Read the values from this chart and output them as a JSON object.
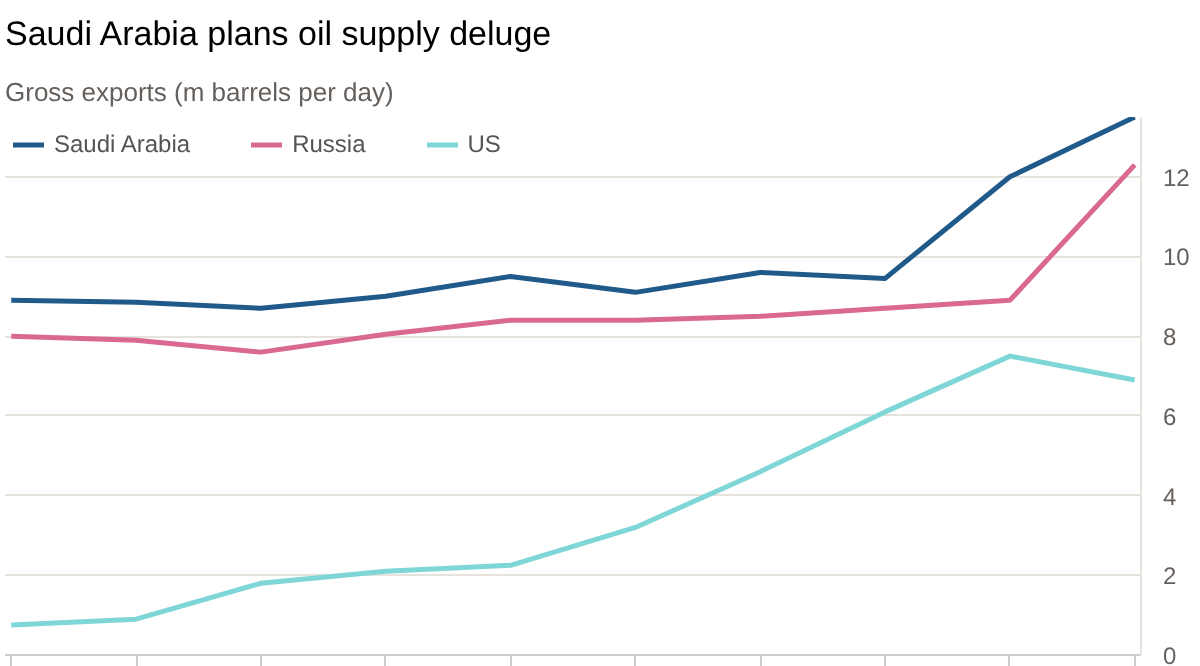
{
  "chart_data": {
    "type": "line",
    "title": "Saudi Arabia plans oil supply deluge",
    "subtitle": "Gross exports (m barrels per day)",
    "categories": [
      null,
      null,
      null,
      null,
      null,
      null,
      null,
      null,
      null,
      null
    ],
    "series": [
      {
        "name": "Saudi Arabia",
        "color": "#1f5a8a",
        "values": [
          8.9,
          8.85,
          8.7,
          9.0,
          9.5,
          9.1,
          9.6,
          9.45,
          12,
          13.5
        ]
      },
      {
        "name": "Russia",
        "color": "#d9698f",
        "values": [
          8.0,
          7.9,
          7.6,
          8.05,
          8.4,
          8.4,
          8.5,
          8.7,
          8.9,
          12.3
        ]
      },
      {
        "name": "US",
        "color": "#7fd6d6",
        "values": [
          0.75,
          0.9,
          1.8,
          2.1,
          2.25,
          3.2,
          4.6,
          6.1,
          7.5,
          6.9
        ]
      }
    ],
    "ylim": [
      0,
      13.5
    ],
    "yticks": [
      0,
      2,
      4,
      6,
      8,
      10,
      12
    ],
    "grid": "y",
    "legend": "top left",
    "marker": "none",
    "line_style": "solid"
  }
}
